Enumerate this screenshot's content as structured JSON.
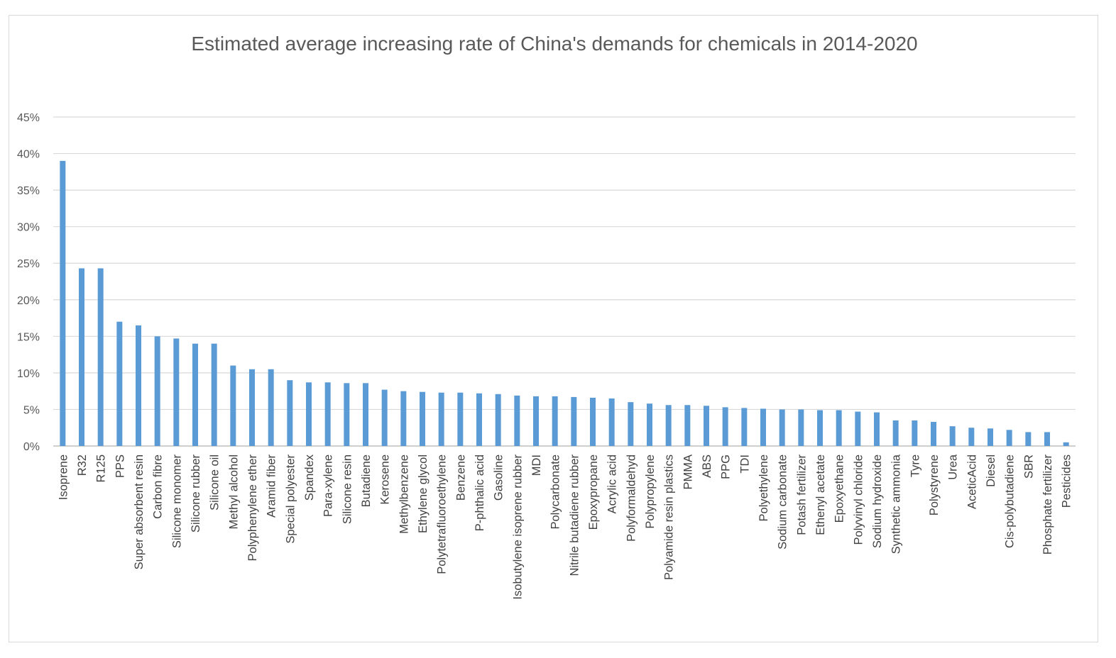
{
  "chart_data": {
    "type": "bar",
    "title": "Estimated average increasing rate of China's demands for chemicals in 2014-2020",
    "xlabel": "",
    "ylabel": "",
    "ylim": [
      0,
      0.45
    ],
    "y_ticks": [
      "0%",
      "5%",
      "10%",
      "15%",
      "20%",
      "25%",
      "30%",
      "35%",
      "40%",
      "45%"
    ],
    "y_tick_values": [
      0,
      0.05,
      0.1,
      0.15,
      0.2,
      0.25,
      0.3,
      0.35,
      0.4,
      0.45
    ],
    "grid": true,
    "legend": "none",
    "bar_color": "#5b9bd5",
    "grid_color": "#d9d9d9",
    "categories": [
      "Isoprene",
      "R32",
      "R125",
      "PPS",
      "Super absorbent resin",
      "Carbon fibre",
      "Silicone monomer",
      "Silicone rubber",
      "Silicone oil",
      "Methyl alcohol",
      "Polyphenylene ether",
      "Aramid fiber",
      "Special polyester",
      "Spandex",
      "Para-xylene",
      "Silicone resin",
      "Butadiene",
      "Kerosene",
      "Methylbenzene",
      "Ethylene glycol",
      "Polytetrafluoroethylene",
      "Benzene",
      "P-phthalic acid",
      "Gasoline",
      "Isobutylene isoprene rubber",
      "MDI",
      "Polycarbonate",
      "Nitrile butadiene rubber",
      "Epoxypropane",
      "Acrylic acid",
      "Polyformaldehyd",
      "Polypropylene",
      "Polyamide resin plastics",
      "PMMA",
      "ABS",
      "PPG",
      "TDI",
      "Polyethylene",
      "Sodium carbonate",
      "Potash fertilizer",
      "Ethenyl acetate",
      "Epoxyethane",
      "Polyvinyl chloride",
      "Sodium hydroxide",
      "Synthetic ammonia",
      "Tyre",
      "Polystyrene",
      "Urea",
      "AceticAcid",
      "Diesel",
      "Cis-polybutadiene",
      "SBR",
      "Phosphate fertilizer",
      "Pesticides"
    ],
    "values": [
      0.39,
      0.243,
      0.243,
      0.17,
      0.165,
      0.15,
      0.147,
      0.14,
      0.14,
      0.11,
      0.105,
      0.105,
      0.09,
      0.087,
      0.087,
      0.086,
      0.086,
      0.077,
      0.075,
      0.074,
      0.073,
      0.073,
      0.072,
      0.071,
      0.069,
      0.068,
      0.068,
      0.067,
      0.066,
      0.065,
      0.06,
      0.058,
      0.056,
      0.056,
      0.055,
      0.053,
      0.052,
      0.051,
      0.05,
      0.05,
      0.049,
      0.049,
      0.047,
      0.046,
      0.035,
      0.035,
      0.033,
      0.027,
      0.025,
      0.024,
      0.022,
      0.019,
      0.019,
      0.005
    ]
  }
}
